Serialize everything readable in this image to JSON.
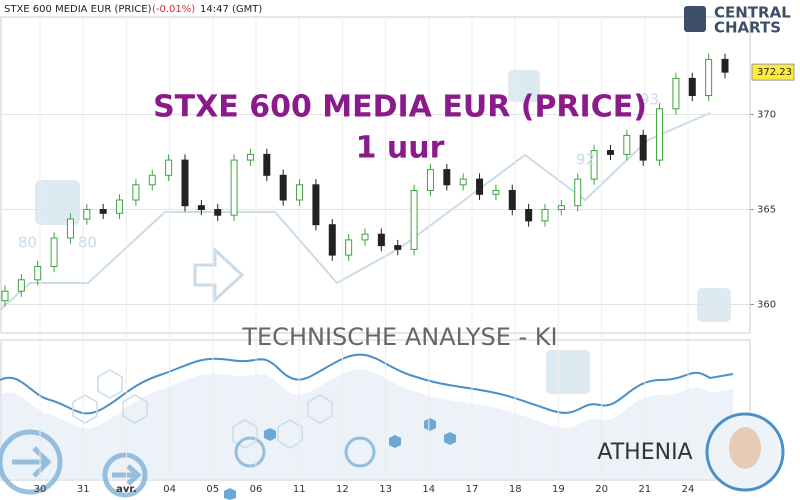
{
  "chart_data": {
    "type": "candlestick",
    "title": "STXE 600 MEDIA EUR (PRICE)",
    "change": "(-0.01%)",
    "time": "14:47 (GMT)",
    "overlay_title": "STXE 600 MEDIA EUR (PRICE)",
    "overlay_subtitle": "1 uur",
    "analysis_label": "TECHNISCHE ANALYSE - KI",
    "brand": [
      "CENTRAL",
      "CHARTS"
    ],
    "assistant": "ATHENIA",
    "watermark_labels": [
      "80",
      "80",
      "92",
      "93"
    ],
    "categories": [
      "30",
      "31",
      "avr.",
      "04",
      "05",
      "06",
      "11",
      "12",
      "13",
      "14",
      "17",
      "18",
      "19",
      "20",
      "21",
      "24"
    ],
    "open": [
      360.2,
      360.7,
      361.3,
      362.0,
      363.5,
      364.5,
      365.0,
      364.8,
      365.5,
      366.3,
      366.8,
      367.6,
      365.2,
      365.0,
      364.7,
      367.6,
      367.9,
      366.8,
      365.5,
      366.3,
      364.2,
      362.6,
      363.4,
      363.7,
      363.1,
      362.9,
      366.0,
      367.1,
      366.3,
      366.6,
      365.8,
      366.0,
      365.0,
      364.4,
      365.0,
      365.2,
      366.6,
      368.1,
      367.9,
      368.9,
      367.6,
      370.3,
      371.9,
      371.0,
      372.9
    ],
    "high": [
      361.0,
      361.6,
      362.3,
      363.8,
      364.8,
      365.3,
      365.3,
      365.8,
      366.6,
      367.1,
      367.9,
      367.9,
      365.5,
      365.3,
      367.9,
      368.2,
      368.2,
      367.1,
      366.6,
      366.6,
      364.5,
      363.7,
      364.0,
      364.0,
      363.4,
      366.3,
      367.4,
      367.4,
      366.9,
      366.9,
      366.3,
      366.3,
      365.3,
      365.3,
      365.5,
      366.9,
      368.4,
      368.4,
      369.2,
      369.2,
      370.6,
      372.2,
      372.2,
      373.2,
      373.2
    ],
    "low": [
      359.9,
      360.4,
      361.0,
      361.7,
      363.2,
      364.2,
      364.5,
      364.5,
      365.2,
      366.0,
      366.5,
      364.9,
      364.7,
      364.4,
      364.4,
      367.3,
      366.5,
      365.2,
      365.2,
      363.9,
      362.3,
      362.3,
      363.1,
      362.8,
      362.6,
      362.6,
      365.7,
      366.0,
      366.0,
      365.5,
      365.5,
      364.7,
      364.1,
      364.1,
      364.7,
      364.9,
      366.3,
      367.6,
      367.6,
      367.3,
      367.3,
      370.0,
      370.7,
      370.7,
      371.9
    ],
    "close": [
      360.7,
      361.3,
      362.0,
      363.5,
      364.5,
      365.0,
      364.8,
      365.5,
      366.3,
      366.8,
      367.6,
      365.2,
      365.0,
      364.7,
      367.6,
      367.9,
      366.8,
      365.5,
      366.3,
      364.2,
      362.6,
      363.4,
      363.7,
      363.1,
      362.9,
      366.0,
      367.1,
      366.3,
      366.6,
      365.8,
      366.0,
      365.0,
      364.4,
      365.0,
      365.2,
      366.6,
      368.1,
      367.9,
      368.9,
      367.6,
      370.3,
      371.9,
      371.0,
      372.9,
      372.23
    ],
    "last_price": 372.23,
    "up_color": "#3fa33f",
    "down_color": "#222222",
    "ylim": [
      358.5,
      375.5
    ],
    "yticks": [
      360,
      365,
      370
    ],
    "grid": true
  }
}
